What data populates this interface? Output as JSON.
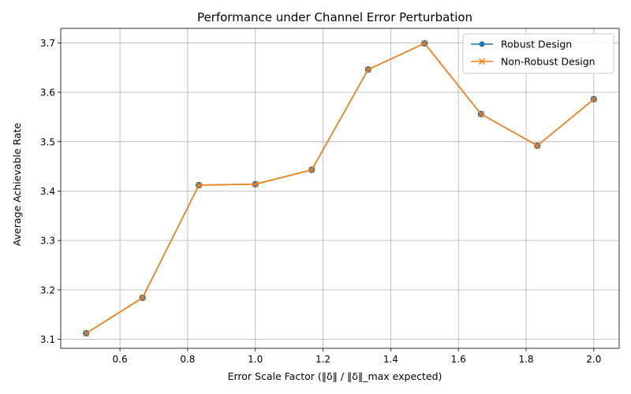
{
  "chart_data": {
    "type": "line",
    "title": "Performance under Channel Error Perturbation",
    "xlabel": "Error Scale Factor (‖δ‖ / ‖δ‖_max expected)",
    "ylabel": "Average Achievable Rate",
    "x": [
      0.5,
      0.6667,
      0.8333,
      1.0,
      1.1667,
      1.3333,
      1.5,
      1.6667,
      1.8333,
      2.0
    ],
    "series": [
      {
        "name": "Robust Design",
        "color": "#1f77b4",
        "marker": "circle",
        "values": [
          3.112,
          3.184,
          3.412,
          3.414,
          3.443,
          3.646,
          3.699,
          3.556,
          3.492,
          3.586
        ]
      },
      {
        "name": "Non-Robust Design",
        "color": "#ff7f0e",
        "marker": "x",
        "values": [
          3.112,
          3.184,
          3.412,
          3.414,
          3.443,
          3.646,
          3.699,
          3.556,
          3.492,
          3.586
        ]
      }
    ],
    "xlim": [
      0.425,
      2.075
    ],
    "ylim": [
      3.0817,
      3.7294
    ],
    "xticks": [
      0.6,
      0.8,
      1.0,
      1.2,
      1.4,
      1.6,
      1.8,
      2.0
    ],
    "xtick_labels": [
      "0.6",
      "0.8",
      "1.0",
      "1.2",
      "1.4",
      "1.6",
      "1.8",
      "2.0"
    ],
    "yticks": [
      3.1,
      3.2,
      3.3,
      3.4,
      3.5,
      3.6,
      3.7
    ],
    "ytick_labels": [
      "3.1",
      "3.2",
      "3.3",
      "3.4",
      "3.5",
      "3.6",
      "3.7"
    ],
    "grid": true,
    "legend_position": "top-right"
  }
}
